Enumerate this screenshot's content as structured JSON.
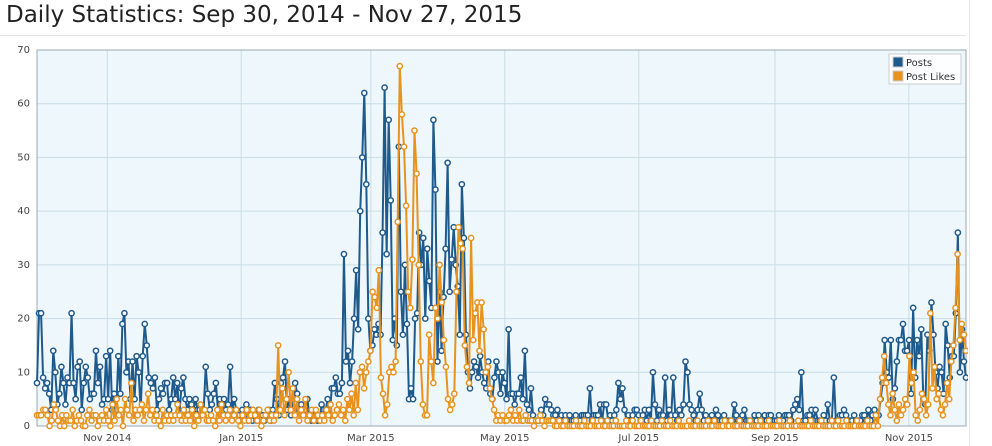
{
  "page": {
    "title": "Daily Statistics: Sep 30, 2014 - Nov 27, 2015"
  },
  "chart_data": {
    "type": "line",
    "title": "Daily Statistics: Sep 30, 2014 - Nov 27, 2015",
    "x_start": "2014-09-30",
    "x_end": "2015-11-27",
    "ylim": [
      0,
      70
    ],
    "y_ticks": [
      0,
      10,
      20,
      30,
      40,
      50,
      60,
      70
    ],
    "x_ticks": [
      {
        "date": "2014-11-01",
        "label": "Nov 2014"
      },
      {
        "date": "2015-01-01",
        "label": "Jan 2015"
      },
      {
        "date": "2015-03-01",
        "label": "Mar 2015"
      },
      {
        "date": "2015-05-01",
        "label": "May 2015"
      },
      {
        "date": "2015-07-01",
        "label": "Jul 2015"
      },
      {
        "date": "2015-09-01",
        "label": "Sep 2015"
      },
      {
        "date": "2015-11-01",
        "label": "Nov 2015"
      }
    ],
    "grid": true,
    "legend_position": "top-right",
    "series": [
      {
        "name": "Posts",
        "color": "#1f5a8c",
        "values": [
          8,
          21,
          21,
          9,
          7,
          8,
          6,
          3,
          14,
          10,
          4,
          6,
          11,
          8,
          4,
          9,
          8,
          21,
          8,
          5,
          11,
          12,
          3,
          8,
          11,
          9,
          5,
          6,
          6,
          14,
          8,
          11,
          4,
          5,
          13,
          5,
          14,
          3,
          6,
          3,
          13,
          6,
          19,
          21,
          10,
          12,
          5,
          12,
          5,
          13,
          10,
          3,
          13,
          19,
          15,
          9,
          8,
          7,
          9,
          3,
          5,
          7,
          6,
          8,
          8,
          3,
          5,
          9,
          5,
          8,
          2,
          7,
          9,
          5,
          3,
          5,
          4,
          3,
          5,
          3,
          3,
          2,
          3,
          11,
          6,
          3,
          4,
          6,
          8,
          3,
          5,
          3,
          5,
          3,
          4,
          11,
          3,
          5,
          3,
          2,
          1,
          3,
          2,
          4,
          1,
          3,
          1,
          2,
          1,
          3,
          1,
          2,
          1,
          2,
          3,
          1,
          3,
          8,
          5,
          2,
          8,
          9,
          12,
          3,
          5,
          2,
          5,
          8,
          6,
          3,
          4,
          2,
          3,
          5,
          2,
          1,
          1,
          2,
          1,
          1,
          4,
          3,
          3,
          5,
          2,
          7,
          7,
          9,
          6,
          6,
          8,
          32,
          12,
          14,
          8,
          12,
          20,
          29,
          18,
          40,
          50,
          62,
          45,
          20,
          14,
          15,
          18,
          17,
          19,
          17,
          36,
          63,
          32,
          57,
          42,
          16,
          20,
          15,
          52,
          25,
          17,
          30,
          19,
          5,
          7,
          5,
          20,
          21,
          36,
          30,
          35,
          20,
          33,
          27,
          22,
          57,
          44,
          12,
          25,
          14,
          24,
          33,
          49,
          25,
          31,
          37,
          30,
          26,
          17,
          45,
          35,
          17,
          10,
          7,
          10,
          12,
          11,
          9,
          13,
          10,
          8,
          7,
          12,
          6,
          5,
          9,
          12,
          10,
          6,
          10,
          8,
          5,
          18,
          6,
          6,
          4,
          6,
          6,
          9,
          5,
          14,
          4,
          3,
          7,
          2,
          1,
          1,
          1,
          3,
          2,
          5,
          4,
          4,
          3,
          2,
          2,
          3,
          1,
          2,
          1,
          2,
          1,
          2,
          1,
          1,
          2,
          1,
          1,
          2,
          2,
          2,
          2,
          7,
          1,
          2,
          2,
          2,
          4,
          1,
          4,
          4,
          1,
          2,
          1,
          2,
          3,
          8,
          5,
          7,
          3,
          1,
          2,
          1,
          2,
          3,
          3,
          2,
          1,
          2,
          3,
          1,
          3,
          1,
          10,
          4,
          1,
          3,
          2,
          2,
          9,
          1,
          3,
          2,
          9,
          2,
          1,
          3,
          2,
          4,
          12,
          10,
          4,
          3,
          2,
          1,
          3,
          6,
          3,
          1,
          2,
          1,
          1,
          2,
          1,
          3,
          2,
          1,
          1,
          2,
          1,
          1,
          1,
          1,
          4,
          2,
          1,
          1,
          2,
          3,
          1,
          1,
          1,
          1,
          2,
          1,
          2,
          1,
          1,
          2,
          1,
          2,
          2,
          1,
          1,
          1,
          2,
          1,
          1,
          2,
          2,
          2,
          1,
          3,
          4,
          5,
          3,
          10,
          1,
          1,
          2,
          2,
          3,
          1,
          3,
          1,
          1,
          1,
          2,
          1,
          4,
          1,
          1,
          9,
          1,
          1,
          2,
          2,
          3,
          2,
          1,
          1,
          1,
          2,
          1,
          1,
          1,
          2,
          2,
          1,
          3,
          1,
          2,
          3,
          2,
          2,
          5,
          8,
          16,
          10,
          9,
          16,
          5,
          7,
          12,
          16,
          16,
          19,
          14,
          14,
          16,
          6,
          22,
          9,
          16,
          13,
          18,
          5,
          4,
          17,
          14,
          23,
          17,
          10,
          7,
          11,
          10,
          6,
          19,
          15,
          9,
          13,
          13,
          21,
          36,
          10,
          18,
          12,
          9
        ]
      },
      {
        "name": "Post Likes",
        "color": "#e8921f",
        "values": [
          2,
          2,
          2,
          3,
          3,
          2,
          0,
          1,
          4,
          3,
          1,
          0,
          2,
          0,
          2,
          1,
          1,
          3,
          0,
          1,
          2,
          1,
          0,
          0,
          2,
          3,
          1,
          2,
          2,
          0,
          1,
          2,
          1,
          3,
          1,
          0,
          4,
          1,
          5,
          2,
          3,
          0,
          5,
          3,
          2,
          8,
          1,
          3,
          2,
          3,
          4,
          1,
          3,
          6,
          2,
          3,
          1,
          2,
          1,
          0,
          3,
          1,
          2,
          1,
          2,
          1,
          2,
          4,
          2,
          1,
          3,
          1,
          2,
          1,
          3,
          0,
          2,
          1,
          4,
          2,
          3,
          1,
          1,
          2,
          1,
          0,
          3,
          1,
          4,
          2,
          1,
          2,
          3,
          1,
          2,
          3,
          1,
          0,
          2,
          1,
          3,
          1,
          2,
          3,
          2,
          1,
          3,
          0,
          1,
          2,
          3,
          1,
          2,
          1,
          2,
          15,
          3,
          7,
          2,
          5,
          10,
          3,
          7,
          2,
          5,
          1,
          3,
          2,
          5,
          1,
          2,
          3,
          1,
          3,
          2,
          1,
          2,
          1,
          3,
          2,
          4,
          1,
          2,
          3,
          4,
          2,
          3,
          1,
          5,
          3,
          6,
          2,
          8,
          3,
          10,
          11,
          7,
          10,
          12,
          14,
          25,
          24,
          22,
          29,
          9,
          6,
          2,
          4,
          10,
          11,
          10,
          12,
          38,
          67,
          58,
          52,
          41,
          25,
          22,
          31,
          55,
          47,
          30,
          12,
          4,
          2,
          2,
          17,
          12,
          8,
          22,
          20,
          30,
          23,
          16,
          11,
          5,
          3,
          4,
          6,
          25,
          37,
          34,
          33,
          15,
          11,
          8,
          35,
          16,
          21,
          23,
          14,
          23,
          18,
          10,
          11,
          7,
          5,
          3,
          1,
          2,
          1,
          2,
          1,
          1,
          2,
          3,
          1,
          2,
          1,
          3,
          1,
          1,
          2,
          1,
          1,
          1,
          0,
          1,
          1,
          2,
          1,
          0,
          1,
          1,
          1,
          1,
          0,
          0,
          1,
          0,
          0,
          1,
          0,
          0,
          0,
          0,
          1,
          0,
          0,
          0,
          1,
          0,
          0,
          0,
          1,
          0,
          0,
          0,
          1,
          0,
          0,
          1,
          0,
          0,
          0,
          1,
          0,
          0,
          0,
          0,
          1,
          0,
          0,
          1,
          0,
          0,
          0,
          1,
          0,
          0,
          0,
          0,
          1,
          0,
          0,
          0,
          0,
          1,
          0,
          0,
          0,
          1,
          0,
          0,
          0,
          1,
          0,
          0,
          0,
          0,
          1,
          0,
          0,
          0,
          1,
          0,
          0,
          0,
          0,
          1,
          0,
          0,
          1,
          0,
          0,
          0,
          0,
          1,
          0,
          0,
          1,
          0,
          0,
          0,
          1,
          0,
          0,
          0,
          0,
          1,
          0,
          0,
          0,
          0,
          1,
          0,
          0,
          0,
          1,
          0,
          0,
          0,
          0,
          1,
          0,
          0,
          0,
          0,
          1,
          0,
          0,
          0,
          1,
          0,
          0,
          0,
          0,
          0,
          1,
          0,
          0,
          0,
          0,
          1,
          0,
          0,
          0,
          0,
          1,
          0,
          0,
          1,
          0,
          0,
          0,
          1,
          0,
          0,
          0,
          0,
          1,
          0,
          0,
          0,
          0,
          1,
          0,
          0,
          0,
          2,
          0,
          5,
          9,
          13,
          8,
          4,
          2,
          6,
          3,
          1,
          4,
          2,
          3,
          5,
          4,
          13,
          8,
          10,
          2,
          1,
          3,
          6,
          5,
          2,
          4,
          21,
          7,
          11,
          5,
          6,
          3,
          2,
          4,
          8,
          5,
          12,
          15,
          22,
          32,
          16,
          19,
          17,
          14
        ]
      }
    ]
  }
}
